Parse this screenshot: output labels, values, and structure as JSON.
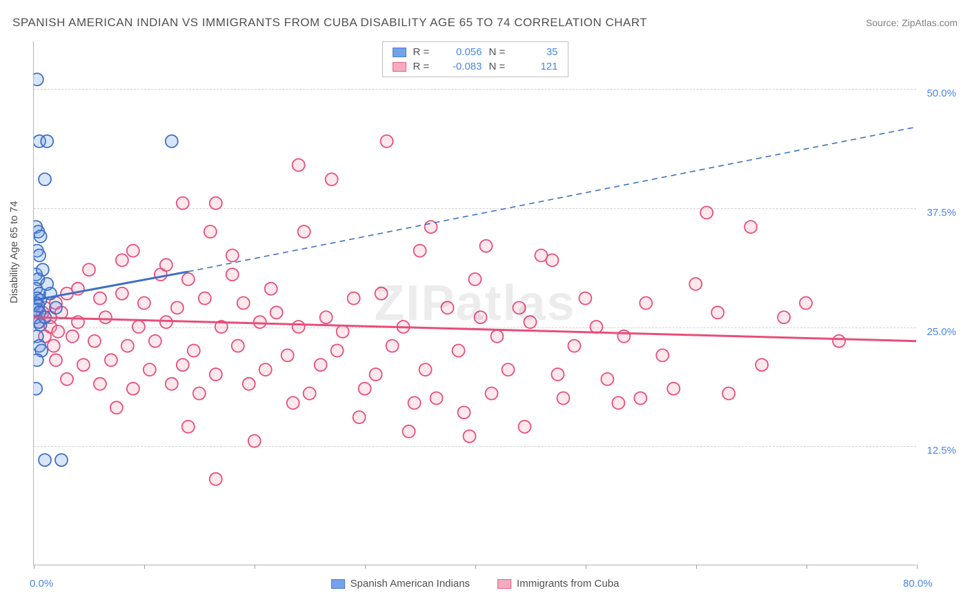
{
  "header": {
    "title": "SPANISH AMERICAN INDIAN VS IMMIGRANTS FROM CUBA DISABILITY AGE 65 TO 74 CORRELATION CHART",
    "source": "Source: ZipAtlas.com"
  },
  "chart": {
    "type": "scatter",
    "y_axis_title": "Disability Age 65 to 74",
    "watermark": "ZIPatlas",
    "xlim": [
      0,
      80
    ],
    "ylim": [
      0,
      55
    ],
    "x_ticks": [
      0,
      10,
      20,
      30,
      40,
      50,
      60,
      70,
      80
    ],
    "x_tick_labels": {
      "0": "0.0%",
      "80": "80.0%"
    },
    "y_gridlines": [
      12.5,
      25.0,
      37.5,
      50.0
    ],
    "y_tick_labels": {
      "12.5": "12.5%",
      "25.0": "25.0%",
      "37.5": "37.5%",
      "50.0": "50.0%"
    },
    "background_color": "#ffffff",
    "grid_color": "#d0d0d0",
    "axis_color": "#b0b0b0",
    "tick_label_color": "#4a86e8",
    "marker_radius": 9,
    "marker_stroke_width": 1.8,
    "marker_fill_opacity": 0.25
  },
  "series": {
    "blue": {
      "name": "Spanish American Indians",
      "color": "#6699e8",
      "stroke": "#3d6fc7",
      "R": "0.056",
      "N": "35",
      "trend_solid": {
        "x1": 0,
        "y1": 27.8,
        "x2": 14,
        "y2": 30.8
      },
      "trend_dash": {
        "x1": 14,
        "y1": 30.8,
        "x2": 80,
        "y2": 46.0
      },
      "points": [
        [
          0.3,
          51.0
        ],
        [
          0.5,
          44.5
        ],
        [
          1.2,
          44.5
        ],
        [
          12.5,
          44.5
        ],
        [
          1.0,
          40.5
        ],
        [
          0.2,
          35.5
        ],
        [
          0.4,
          35.0
        ],
        [
          0.6,
          34.5
        ],
        [
          0.3,
          33.0
        ],
        [
          0.5,
          32.5
        ],
        [
          0.2,
          30.5
        ],
        [
          0.4,
          30.0
        ],
        [
          0.2,
          29.0
        ],
        [
          0.5,
          28.5
        ],
        [
          0.3,
          28.0
        ],
        [
          0.6,
          27.8
        ],
        [
          0.2,
          27.5
        ],
        [
          0.4,
          27.2
        ],
        [
          0.3,
          26.8
        ],
        [
          0.5,
          26.5
        ],
        [
          0.2,
          26.0
        ],
        [
          0.4,
          25.5
        ],
        [
          0.6,
          25.2
        ],
        [
          0.3,
          24.0
        ],
        [
          0.5,
          23.0
        ],
        [
          0.7,
          22.5
        ],
        [
          0.3,
          21.5
        ],
        [
          0.2,
          18.5
        ],
        [
          1.0,
          11.0
        ],
        [
          2.5,
          11.0
        ],
        [
          2.0,
          27.0
        ],
        [
          1.5,
          28.5
        ],
        [
          1.2,
          29.5
        ],
        [
          0.8,
          31.0
        ],
        [
          1.0,
          26.0
        ]
      ]
    },
    "pink": {
      "name": "Immigrants from Cuba",
      "color": "#f5a3b8",
      "stroke": "#e84d7a",
      "R": "-0.083",
      "N": "121",
      "trend_solid": {
        "x1": 0,
        "y1": 26.0,
        "x2": 80,
        "y2": 23.5
      },
      "points": [
        [
          32.0,
          44.5
        ],
        [
          24.0,
          42.0
        ],
        [
          27.0,
          40.5
        ],
        [
          16.5,
          38.0
        ],
        [
          13.5,
          38.0
        ],
        [
          61.0,
          37.0
        ],
        [
          65.0,
          35.5
        ],
        [
          16.0,
          35.0
        ],
        [
          24.5,
          35.0
        ],
        [
          36.0,
          35.5
        ],
        [
          9.0,
          33.0
        ],
        [
          35.0,
          33.0
        ],
        [
          46.0,
          32.5
        ],
        [
          47.0,
          32.0
        ],
        [
          5.0,
          31.0
        ],
        [
          11.5,
          30.5
        ],
        [
          14.0,
          30.0
        ],
        [
          18.0,
          30.5
        ],
        [
          40.0,
          30.0
        ],
        [
          41.0,
          33.5
        ],
        [
          60.0,
          29.5
        ],
        [
          3.0,
          28.5
        ],
        [
          6.0,
          28.0
        ],
        [
          8.0,
          28.5
        ],
        [
          10.0,
          27.5
        ],
        [
          13.0,
          27.0
        ],
        [
          15.5,
          28.0
        ],
        [
          19.0,
          27.5
        ],
        [
          22.0,
          26.5
        ],
        [
          29.0,
          28.0
        ],
        [
          37.5,
          27.0
        ],
        [
          44.0,
          27.0
        ],
        [
          55.5,
          27.5
        ],
        [
          70.0,
          27.5
        ],
        [
          1.5,
          26.0
        ],
        [
          2.5,
          26.5
        ],
        [
          4.0,
          25.5
        ],
        [
          6.5,
          26.0
        ],
        [
          9.5,
          25.0
        ],
        [
          12.0,
          25.5
        ],
        [
          17.0,
          25.0
        ],
        [
          20.5,
          25.5
        ],
        [
          24.0,
          25.0
        ],
        [
          28.0,
          24.5
        ],
        [
          33.5,
          25.0
        ],
        [
          45.0,
          25.5
        ],
        [
          51.0,
          25.0
        ],
        [
          62.0,
          26.5
        ],
        [
          68.0,
          26.0
        ],
        [
          1.0,
          24.0
        ],
        [
          3.5,
          24.0
        ],
        [
          5.5,
          23.5
        ],
        [
          8.5,
          23.0
        ],
        [
          11.0,
          23.5
        ],
        [
          14.5,
          22.5
        ],
        [
          18.5,
          23.0
        ],
        [
          23.0,
          22.0
        ],
        [
          27.5,
          22.5
        ],
        [
          32.5,
          23.0
        ],
        [
          38.5,
          22.5
        ],
        [
          49.0,
          23.0
        ],
        [
          73.0,
          23.5
        ],
        [
          2.0,
          21.5
        ],
        [
          4.5,
          21.0
        ],
        [
          7.0,
          21.5
        ],
        [
          10.5,
          20.5
        ],
        [
          13.5,
          21.0
        ],
        [
          16.5,
          20.0
        ],
        [
          21.0,
          20.5
        ],
        [
          26.0,
          21.0
        ],
        [
          31.0,
          20.0
        ],
        [
          43.0,
          20.5
        ],
        [
          3.0,
          19.5
        ],
        [
          6.0,
          19.0
        ],
        [
          9.0,
          18.5
        ],
        [
          12.5,
          19.0
        ],
        [
          15.0,
          18.0
        ],
        [
          19.5,
          19.0
        ],
        [
          25.0,
          18.0
        ],
        [
          30.0,
          18.5
        ],
        [
          36.5,
          17.5
        ],
        [
          41.5,
          18.0
        ],
        [
          58.0,
          18.5
        ],
        [
          48.0,
          17.5
        ],
        [
          53.0,
          17.0
        ],
        [
          7.5,
          16.5
        ],
        [
          14.0,
          14.5
        ],
        [
          23.5,
          17.0
        ],
        [
          55.0,
          17.5
        ],
        [
          34.0,
          14.0
        ],
        [
          39.5,
          13.5
        ],
        [
          44.5,
          14.5
        ],
        [
          16.5,
          9.0
        ],
        [
          1.0,
          27.0
        ],
        [
          2.0,
          27.5
        ],
        [
          1.5,
          25.0
        ],
        [
          0.8,
          26.5
        ],
        [
          2.2,
          24.5
        ],
        [
          0.5,
          25.5
        ],
        [
          1.8,
          23.0
        ],
        [
          47.5,
          20.0
        ],
        [
          52.0,
          19.5
        ],
        [
          42.0,
          24.0
        ],
        [
          50.0,
          28.0
        ],
        [
          57.0,
          22.0
        ],
        [
          63.0,
          18.0
        ],
        [
          34.5,
          17.0
        ],
        [
          39.0,
          16.0
        ],
        [
          29.5,
          15.5
        ],
        [
          20.0,
          13.0
        ],
        [
          8.0,
          32.0
        ],
        [
          12.0,
          31.5
        ],
        [
          18.0,
          32.5
        ],
        [
          21.5,
          29.0
        ],
        [
          26.5,
          26.0
        ],
        [
          31.5,
          28.5
        ],
        [
          40.5,
          26.0
        ],
        [
          53.5,
          24.0
        ],
        [
          66.0,
          21.0
        ],
        [
          35.5,
          20.5
        ],
        [
          4.0,
          29.0
        ]
      ]
    }
  },
  "legend_bottom": {
    "item1": "Spanish American Indians",
    "item2": "Immigrants from Cuba"
  },
  "legend_top_labels": {
    "R": "R =",
    "N": "N ="
  }
}
